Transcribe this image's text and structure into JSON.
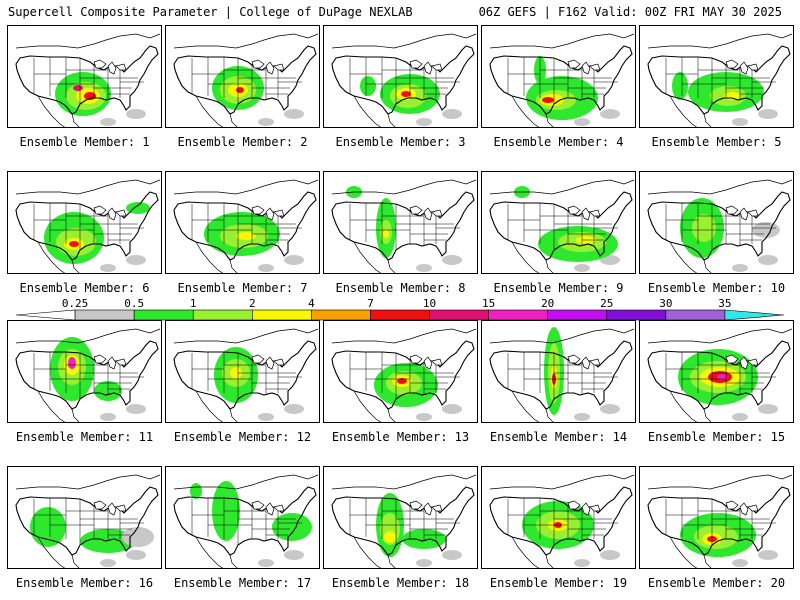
{
  "header": {
    "left": "Supercell Composite Parameter | College of DuPage NEXLAB",
    "right": "06Z GEFS | F162 Valid: 00Z FRI MAY 30 2025"
  },
  "colorbar": {
    "ticks": [
      "0.25",
      "0.5",
      "1",
      "2",
      "4",
      "7",
      "10",
      "15",
      "20",
      "25",
      "30",
      "35"
    ],
    "colors": [
      "#ffffff",
      "#c8c8c8",
      "#2ee82e",
      "#98f030",
      "#f8f800",
      "#f8a000",
      "#f01010",
      "#e01070",
      "#f020c0",
      "#c010f0",
      "#8010d8",
      "#a060d8",
      "#30e8e8"
    ]
  },
  "members": [
    {
      "label": "Ensemble Member: 1"
    },
    {
      "label": "Ensemble Member: 2"
    },
    {
      "label": "Ensemble Member: 3"
    },
    {
      "label": "Ensemble Member: 4"
    },
    {
      "label": "Ensemble Member: 5"
    },
    {
      "label": "Ensemble Member: 6"
    },
    {
      "label": "Ensemble Member: 7"
    },
    {
      "label": "Ensemble Member: 8"
    },
    {
      "label": "Ensemble Member: 9"
    },
    {
      "label": "Ensemble Member: 10"
    },
    {
      "label": "Ensemble Member: 11"
    },
    {
      "label": "Ensemble Member: 12"
    },
    {
      "label": "Ensemble Member: 13"
    },
    {
      "label": "Ensemble Member: 14"
    },
    {
      "label": "Ensemble Member: 15"
    },
    {
      "label": "Ensemble Member: 16"
    },
    {
      "label": "Ensemble Member: 17"
    },
    {
      "label": "Ensemble Member: 18"
    },
    {
      "label": "Ensemble Member: 19"
    },
    {
      "label": "Ensemble Member: 20"
    }
  ]
}
